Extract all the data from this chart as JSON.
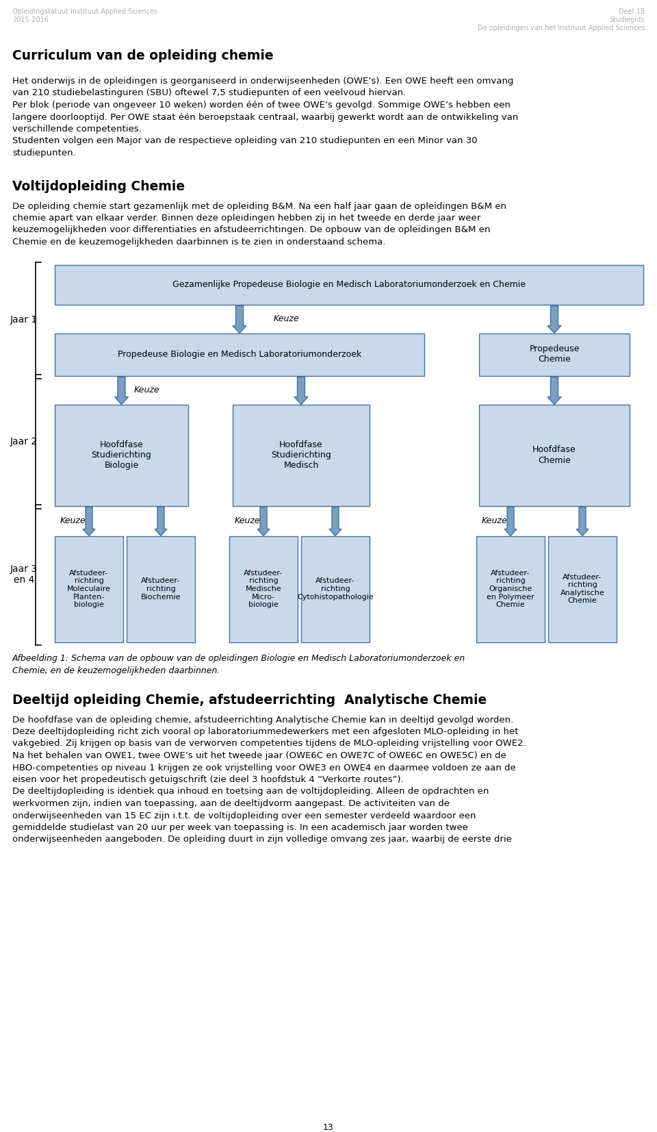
{
  "header_left_line1": "Opleidingstatuut Instituut Applied Sciences",
  "header_left_line2": "2015-2016",
  "header_right_line1": "Deel 1B",
  "header_right_line2": "Studiegids",
  "header_right_line3": "De opleidingen van het Instituut Applied Sciences",
  "title1": "Curriculum van de opleiding chemie",
  "para1_lines": [
    "Het onderwijs in de opleidingen is georganiseerd in onderwijseenheden (OWE’s). Een OWE heeft een omvang",
    "van 210 studiebelastinguren (SBU) oftewel 7,5 studiepunten of een veelvoud hiervan.",
    "Per blok (periode van ongeveer 10 weken) worden één of twee OWE’s gevolgd. Sommige OWE’s hebben een",
    "langere doorlooptijd. Per OWE staat één beroepstaak centraal, waarbij gewerkt wordt aan de ontwikkeling van",
    "verschillende competenties.",
    "Studenten volgen een Major van de respectieve opleiding van 210 studiepunten en een Minor van 30",
    "studiepunten."
  ],
  "title2": "Voltijdopleiding Chemie",
  "para2_lines": [
    "De opleiding chemie start gezamenlijk met de opleiding B&M. Na een half jaar gaan de opleidingen B&M en",
    "chemie apart van elkaar verder. Binnen deze opleidingen hebben zij in het tweede en derde jaar weer",
    "keuzemogelijkheden voor differentiaties en afstudeerrichtingen. De opbouw van de opleidingen B&M en",
    "Chemie en de keuzemogelijkheden daarbinnen is te zien in onderstaand schema."
  ],
  "caption_lines": [
    "Afbeelding 1: Schema van de opbouw van de opleidingen Biologie en Medisch Laboratoriumonderzoek en",
    "Chemie, en de keuzemogelijkheden daarbinnen."
  ],
  "title3": "Deeltijd opleiding Chemie, afstudeerrichting  Analytische Chemie",
  "para3_lines": [
    "De hoofdfase van de opleiding chemie, afstudeerrichting Analytische Chemie kan in deeltijd gevolgd worden.",
    "Deze deeltijdopleiding richt zich vooral op laboratoriummedewerkers met een afgesloten MLO-opleiding in het",
    "vakgebied. Zij krijgen op basis van de verworven competenties tijdens de MLO-opleiding vrijstelling voor OWE2.",
    "Na het behalen van OWE1, twee OWE’s uit het tweede jaar (OWE6C en OWE7C of OWE6C en OWE5C) en de",
    "HBO-competenties op niveau 1 krijgen ze ook vrijstelling voor OWE3 en OWE4 en daarmee voldoen ze aan de",
    "eisen voor het propedeutisch getuigschrift (zie deel 3 hoofdstuk 4 “Verkorte routes”).",
    "De deeltijdopleiding is identiek qua inhoud en toetsing aan de voltijdopleiding. Alleen de opdrachten en",
    "werkvormen zijn, indien van toepassing, aan de deeltijdvorm aangepast. De activiteiten van de",
    "onderwijseenheden van 15 EC zijn i.t.t. de voltijdopleiding over een semester verdeeld waardoor een",
    "gemiddelde studielast van 20 uur per week van toepassing is. In een academisch jaar worden twee",
    "onderwijseenheden aangeboden. De opleiding duurt in zijn volledige omvang zes jaar, waarbij de eerste drie"
  ],
  "page_number": "13",
  "box_fill": "#c8d9ec",
  "box_edge": "#4472a0",
  "arrow_fill": "#7a9fc0",
  "arrow_edge": "#4472a0",
  "background": "#ffffff",
  "text_color": "#000000",
  "header_color": "#b0b0b0",
  "diagram": {
    "jaar1_label": "Jaar 1",
    "jaar2_label": "Jaar 2",
    "jaar3_label": "Jaar 3\nen 4",
    "box_top": "Gezamenlijke Propedeuse Biologie en Medisch Laboratoriumonderzoek en Chemie",
    "box_mid_left": "Propedeuse Biologie en Medisch Laboratoriumonderzoek",
    "box_mid_right": "Propedeuse\nChemie",
    "box_jaar2_left": "Hoofdfase\nStudierichting\nBiologie",
    "box_jaar2_mid": "Hoofdfase\nStudierichting\nMedisch",
    "box_jaar2_right": "Hoofdfase\nChemie",
    "box_jaar3_0": "Afstudeer-\nrichting\nMoleculaire\nPlanten-\nbiologie",
    "box_jaar3_1": "Afstudeer-\nrichting\nBiochemie",
    "box_jaar3_2": "Afstudeer-\nrichting\nMedische\nMicro-\nbiologie",
    "box_jaar3_3": "Afstudeer-\nrichting\nCytohistopathologie",
    "box_jaar3_4": "Afstudeer-\nrichting\nOrganische\nen Polymeer\nChemie",
    "box_jaar3_5": "Afstudeer-\nrichting\nAnalytische\nChemie"
  }
}
